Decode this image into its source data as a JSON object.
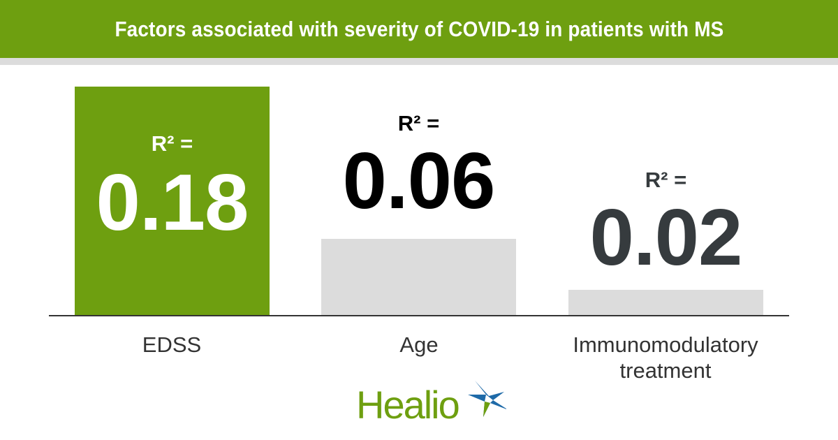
{
  "header": {
    "title": "Factors associated with severity of COVID-19 in patients with MS"
  },
  "chart_data": {
    "type": "bar",
    "title": "Factors associated with severity of COVID-19 in patients with MS",
    "categories": [
      "EDSS",
      "Age",
      "Immunomodulatory treatment"
    ],
    "values": [
      0.18,
      0.06,
      0.02
    ],
    "value_prefix": "R² =",
    "value_labels": [
      "0.18",
      "0.06",
      "0.02"
    ],
    "category_lines": [
      [
        "EDSS"
      ],
      [
        "Age"
      ],
      [
        "Immunomodulatory",
        "treatment"
      ]
    ],
    "ylim": [
      0,
      0.18
    ],
    "colors": [
      "#6e9f10",
      "#dcdcdc",
      "#dcdcdc"
    ],
    "label_colors": [
      "#ffffff",
      "#000000",
      "#363b3e"
    ]
  },
  "logo": {
    "text": "Healio"
  }
}
